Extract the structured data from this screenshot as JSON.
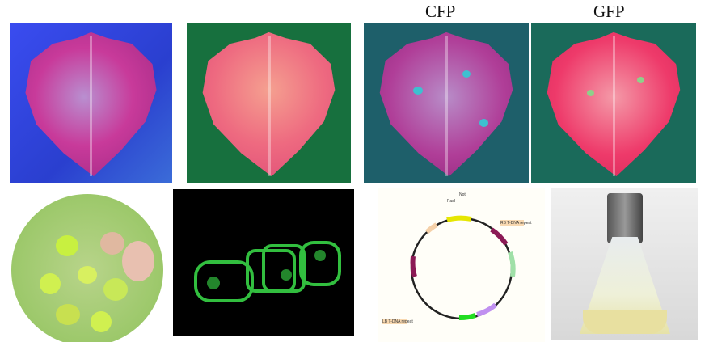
{
  "labels": {
    "cfp": "CFP",
    "gfp": "GFP"
  },
  "plasmid": {
    "feature_labels": [
      "RB T-DNA repeat",
      "LB T-DNA repeat",
      "NotI",
      "PacI"
    ]
  },
  "colors": {
    "leaf_magenta": "#c83a9a",
    "leaf_pink": "#f05a86",
    "bg_blue": "#2a45d8",
    "bg_green": "#17703e",
    "bg_teal": "#1e6a78",
    "gfp_green": "#3be04a"
  }
}
